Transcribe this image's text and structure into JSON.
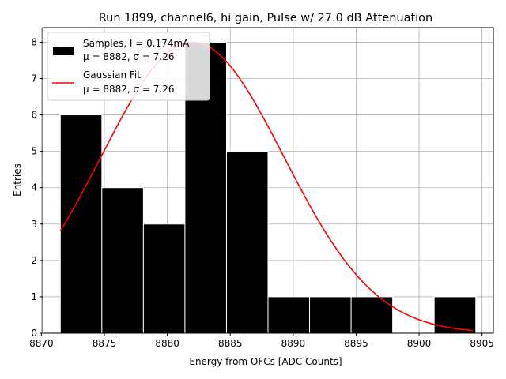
{
  "chart_data": {
    "type": "histogram",
    "title": "Run 1899, channel6, hi gain, Pulse w/ 27.0 dB Attenuation",
    "xlabel": "Energy from OFCs [ADC Counts]",
    "ylabel": "Entries",
    "xlim": [
      8870.1,
      8905.9
    ],
    "ylim": [
      0,
      8.4
    ],
    "xticks": [
      8870,
      8875,
      8880,
      8885,
      8890,
      8895,
      8900,
      8905
    ],
    "yticks": [
      0,
      1,
      2,
      3,
      4,
      5,
      6,
      7,
      8
    ],
    "grid": true,
    "bar_color": "#000000",
    "fit_color": "#ff0000",
    "bins": [
      {
        "x0": 8871.5,
        "x1": 8874.8,
        "count": 6
      },
      {
        "x0": 8874.8,
        "x1": 8878.1,
        "count": 4
      },
      {
        "x0": 8878.1,
        "x1": 8881.4,
        "count": 3
      },
      {
        "x0": 8881.4,
        "x1": 8884.7,
        "count": 8
      },
      {
        "x0": 8884.7,
        "x1": 8888.0,
        "count": 5
      },
      {
        "x0": 8888.0,
        "x1": 8891.3,
        "count": 1
      },
      {
        "x0": 8891.3,
        "x1": 8894.6,
        "count": 1
      },
      {
        "x0": 8894.6,
        "x1": 8897.9,
        "count": 1
      },
      {
        "x0": 8897.9,
        "x1": 8901.2,
        "count": 0
      },
      {
        "x0": 8901.2,
        "x1": 8904.5,
        "count": 1
      }
    ],
    "fit": {
      "type": "gaussian",
      "amplitude": 8.0,
      "mu": 8882,
      "sigma": 7.26,
      "x_range": [
        8871.5,
        8904.3
      ]
    },
    "legend": {
      "position": "top-left",
      "entries": [
        {
          "kind": "patch",
          "line1": "Samples, I = 0.174mA",
          "line2": "μ = 8882, σ = 7.26"
        },
        {
          "kind": "line",
          "line1": "Gaussian Fit",
          "line2": "μ = 8882, σ = 7.26"
        }
      ]
    }
  }
}
